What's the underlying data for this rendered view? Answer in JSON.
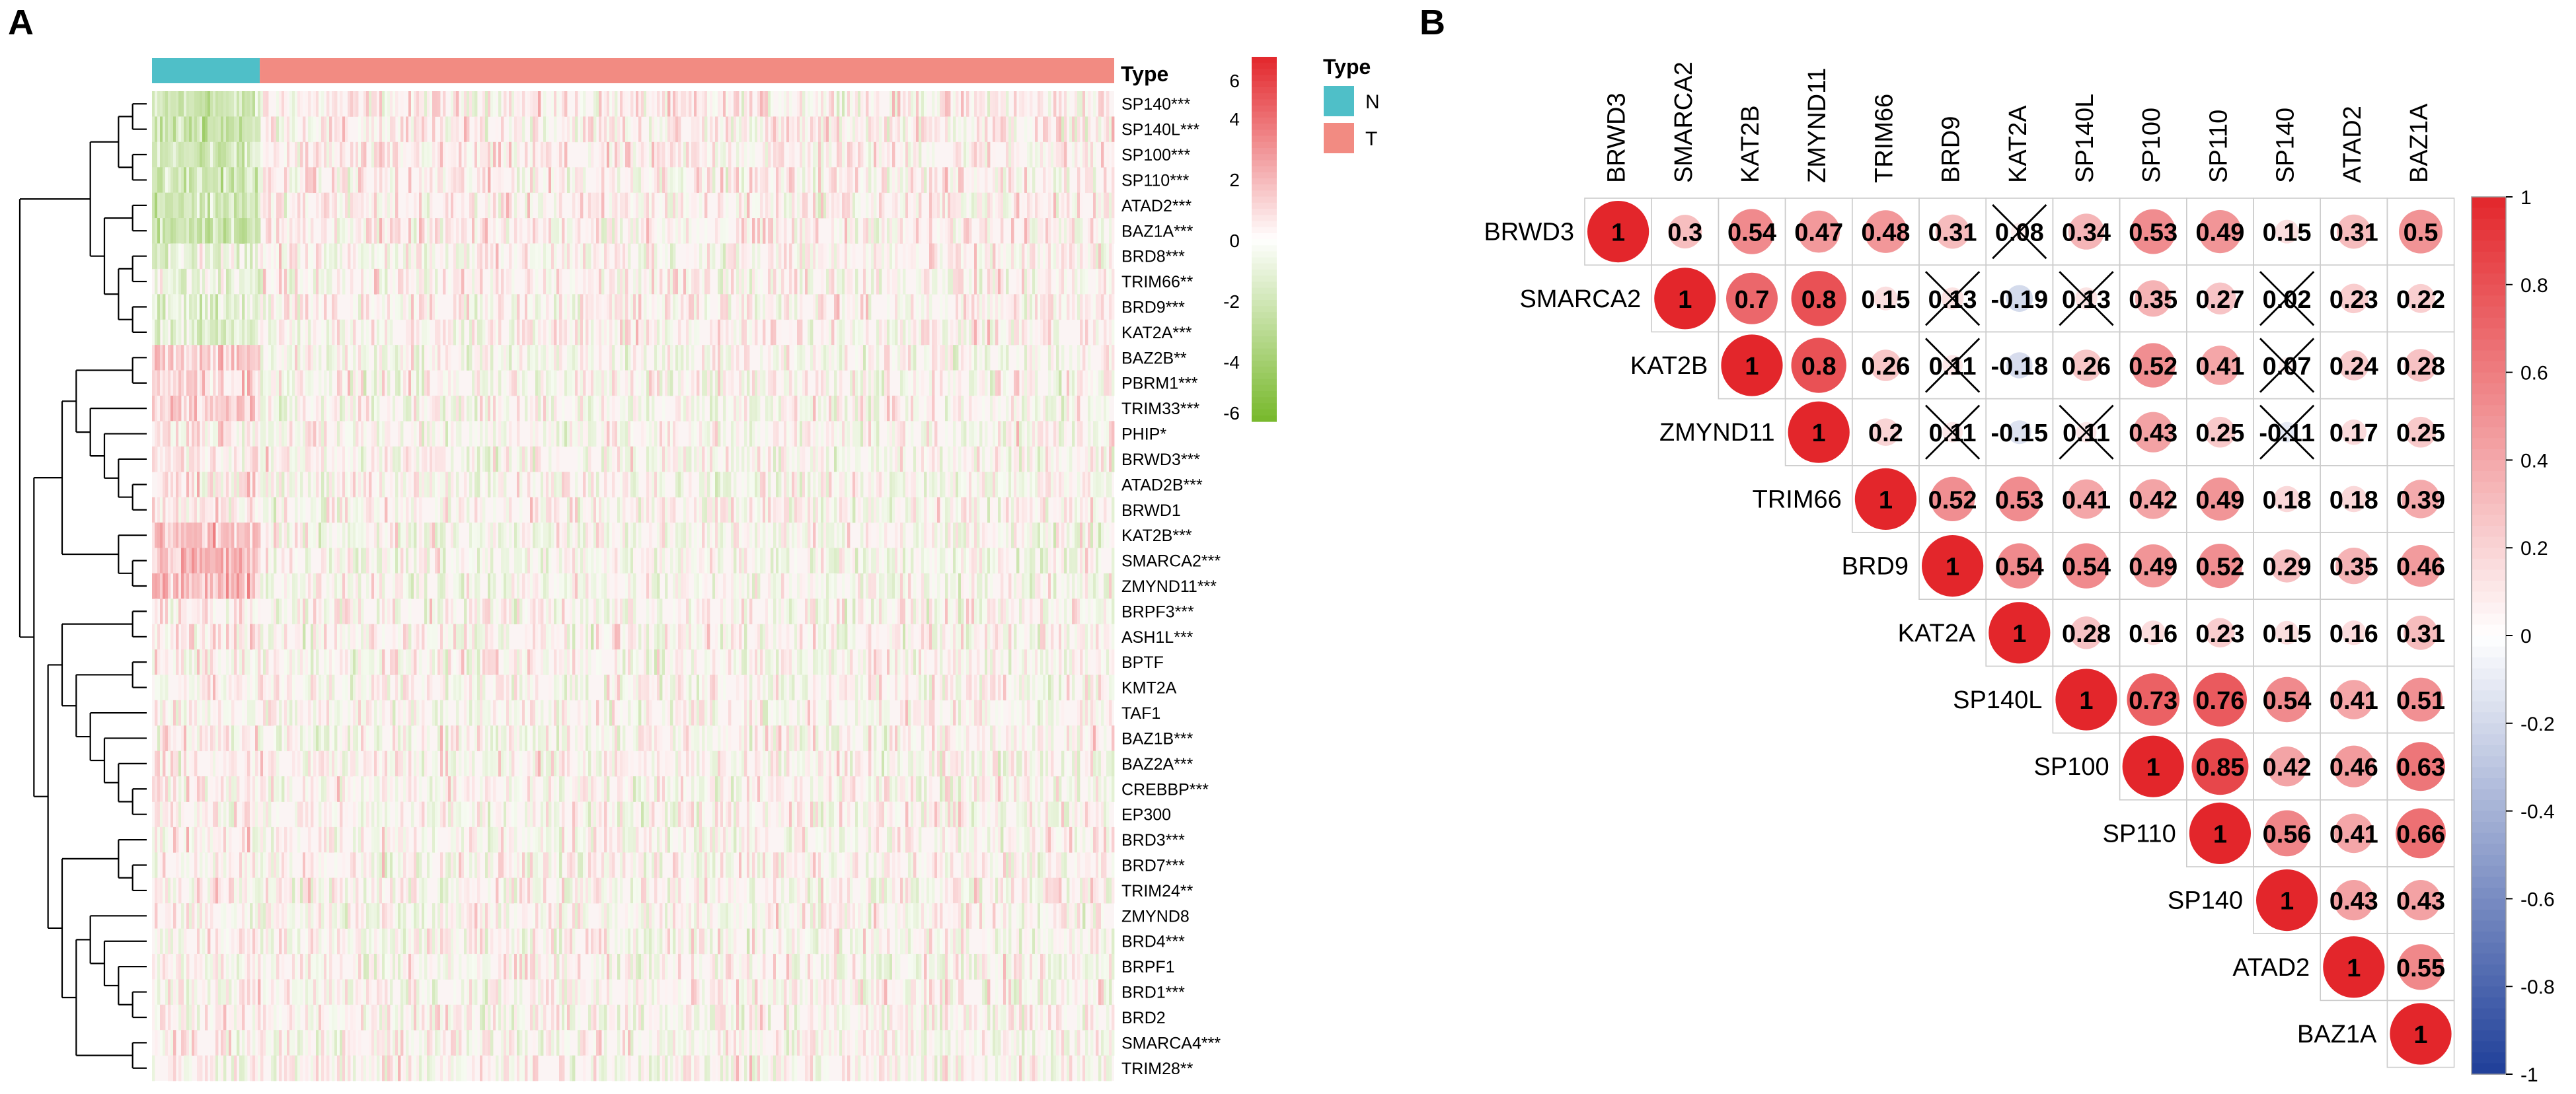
{
  "panel_a": {
    "label": "A",
    "chart_data": {
      "type": "heatmap",
      "title": "",
      "annotation_title": "Type",
      "groups": [
        {
          "name": "N",
          "color": "#4fbfc8",
          "fraction": 0.112
        },
        {
          "name": "T",
          "color": "#f28b82",
          "fraction": 0.888
        }
      ],
      "rows": [
        "SP140***",
        "SP140L***",
        "SP100***",
        "SP110***",
        "ATAD2***",
        "BAZ1A***",
        "BRD8***",
        "TRIM66**",
        "BRD9***",
        "KAT2A***",
        "BAZ2B**",
        "PBRM1***",
        "TRIM33***",
        "PHIP*",
        "BRWD3***",
        "ATAD2B***",
        "BRWD1",
        "KAT2B***",
        "SMARCA2***",
        "ZMYND11***",
        "BRPF3***",
        "ASH1L***",
        "BPTF",
        "KMT2A",
        "TAF1",
        "BAZ1B***",
        "BAZ2A***",
        "CREBBP***",
        "EP300",
        "BRD3***",
        "BRD7***",
        "TRIM24**",
        "ZMYND8",
        "BRD4***",
        "BRPF1",
        "BRD1***",
        "BRD2",
        "SMARCA4***",
        "TRIM28**"
      ],
      "row_group_bias": [
        -2.2,
        -2.2,
        -2.0,
        -2.0,
        -1.8,
        -2.0,
        -0.6,
        -1.0,
        -1.2,
        -1.2,
        1.2,
        1.0,
        1.2,
        0.6,
        0.6,
        0.6,
        0.4,
        1.6,
        1.8,
        1.6,
        0.3,
        0.3,
        0.2,
        0.2,
        0.1,
        0.2,
        0.2,
        0.2,
        0.1,
        0.2,
        0.2,
        0.2,
        0.1,
        0.2,
        0.1,
        0.1,
        0.1,
        0.3,
        0.1
      ],
      "colorbar": {
        "min": -6,
        "max": 6,
        "ticks": [
          "6",
          "4",
          "2",
          "0",
          "-2",
          "-4",
          "-6"
        ],
        "low_color": "#77b82a",
        "mid_color": "#ffffff",
        "high_color": "#e3262b"
      }
    }
  },
  "panel_b": {
    "label": "B",
    "chart_data": {
      "type": "correlation-matrix",
      "genes": [
        "BRWD3",
        "SMARCA2",
        "KAT2B",
        "ZMYND11",
        "TRIM66",
        "BRD9",
        "KAT2A",
        "SP140L",
        "SP100",
        "SP110",
        "SP140",
        "ATAD2",
        "BAZ1A"
      ],
      "matrix": [
        [
          1,
          0.3,
          0.54,
          0.47,
          0.48,
          0.31,
          0.08,
          0.34,
          0.53,
          0.49,
          0.15,
          0.31,
          0.5
        ],
        [
          null,
          1,
          0.7,
          0.8,
          0.15,
          0.13,
          -0.19,
          0.13,
          0.35,
          0.27,
          0.02,
          0.23,
          0.22
        ],
        [
          null,
          null,
          1,
          0.8,
          0.26,
          0.11,
          -0.18,
          0.26,
          0.52,
          0.41,
          0.07,
          0.24,
          0.28
        ],
        [
          null,
          null,
          null,
          1,
          0.2,
          0.11,
          -0.15,
          0.11,
          0.43,
          0.25,
          -0.11,
          0.17,
          0.25
        ],
        [
          null,
          null,
          null,
          null,
          1,
          0.52,
          0.53,
          0.41,
          0.42,
          0.49,
          0.18,
          0.18,
          0.39
        ],
        [
          null,
          null,
          null,
          null,
          null,
          1,
          0.54,
          0.54,
          0.49,
          0.52,
          0.29,
          0.35,
          0.46
        ],
        [
          null,
          null,
          null,
          null,
          null,
          null,
          1,
          0.28,
          0.16,
          0.23,
          0.15,
          0.16,
          0.31
        ],
        [
          null,
          null,
          null,
          null,
          null,
          null,
          null,
          1,
          0.73,
          0.76,
          0.54,
          0.41,
          0.51
        ],
        [
          null,
          null,
          null,
          null,
          null,
          null,
          null,
          null,
          1,
          0.85,
          0.42,
          0.46,
          0.63
        ],
        [
          null,
          null,
          null,
          null,
          null,
          null,
          null,
          null,
          null,
          1,
          0.56,
          0.41,
          0.66
        ],
        [
          null,
          null,
          null,
          null,
          null,
          null,
          null,
          null,
          null,
          null,
          1,
          0.43,
          0.43
        ],
        [
          null,
          null,
          null,
          null,
          null,
          null,
          null,
          null,
          null,
          null,
          null,
          1,
          0.55
        ],
        [
          null,
          null,
          null,
          null,
          null,
          null,
          null,
          null,
          null,
          null,
          null,
          null,
          1
        ]
      ],
      "labels": [
        [
          "1",
          "0.3",
          "0.54",
          "0.47",
          "0.48",
          "0.31",
          "0.08",
          "0.34",
          "0.53",
          "0.49",
          "0.15",
          "0.31",
          "0.5"
        ],
        [
          "",
          "1",
          "0.7",
          "0.8",
          "0.15",
          "0.13",
          "-0.19",
          "0.13",
          "0.35",
          "0.27",
          "0.02",
          "0.23",
          "0.22"
        ],
        [
          "",
          "",
          "1",
          "0.8",
          "0.26",
          "0.11",
          "-0.18",
          "0.26",
          "0.52",
          "0.41",
          "0.07",
          "0.24",
          "0.28"
        ],
        [
          "",
          "",
          "",
          "1",
          "0.2",
          "0.11",
          "-0.15",
          "0.11",
          "0.43",
          "0.25",
          "-0.11",
          "0.17",
          "0.25"
        ],
        [
          "",
          "",
          "",
          "",
          "1",
          "0.52",
          "0.53",
          "0.41",
          "0.42",
          "0.49",
          "0.18",
          "0.18",
          "0.39"
        ],
        [
          "",
          "",
          "",
          "",
          "",
          "1",
          "0.54",
          "0.54",
          "0.49",
          "0.52",
          "0.29",
          "0.35",
          "0.46"
        ],
        [
          "",
          "",
          "",
          "",
          "",
          "",
          "1",
          "0.28",
          "0.16",
          "0.23",
          "0.15",
          "0.16",
          "0.31"
        ],
        [
          "",
          "",
          "",
          "",
          "",
          "",
          "",
          "1",
          "0.73",
          "0.76",
          "0.54",
          "0.41",
          "0.51"
        ],
        [
          "",
          "",
          "",
          "",
          "",
          "",
          "",
          "",
          "1",
          "0.85",
          "0.42",
          "0.46",
          "0.63"
        ],
        [
          "",
          "",
          "",
          "",
          "",
          "",
          "",
          "",
          "",
          "1",
          "0.56",
          "0.41",
          "0.66"
        ],
        [
          "",
          "",
          "",
          "",
          "",
          "",
          "",
          "",
          "",
          "",
          "1",
          "0.43",
          "0.43"
        ],
        [
          "",
          "",
          "",
          "",
          "",
          "",
          "",
          "",
          "",
          "",
          "",
          "1",
          "0.55"
        ],
        [
          "",
          "",
          "",
          "",
          "",
          "",
          "",
          "",
          "",
          "",
          "",
          "",
          "1"
        ]
      ],
      "insignificant": [
        [
          0,
          6
        ],
        [
          1,
          5
        ],
        [
          1,
          7
        ],
        [
          1,
          10
        ],
        [
          2,
          5
        ],
        [
          2,
          10
        ],
        [
          3,
          5
        ],
        [
          3,
          7
        ],
        [
          3,
          10
        ]
      ],
      "colorbar": {
        "min": -1,
        "max": 1,
        "ticks": [
          "1",
          "0.8",
          "0.6",
          "0.4",
          "0.2",
          "0",
          "-0.2",
          "-0.4",
          "-0.6",
          "-0.8",
          "-1"
        ],
        "low_color": "#1f3f99",
        "mid_color": "#ffffff",
        "high_color": "#e3262b"
      }
    }
  }
}
